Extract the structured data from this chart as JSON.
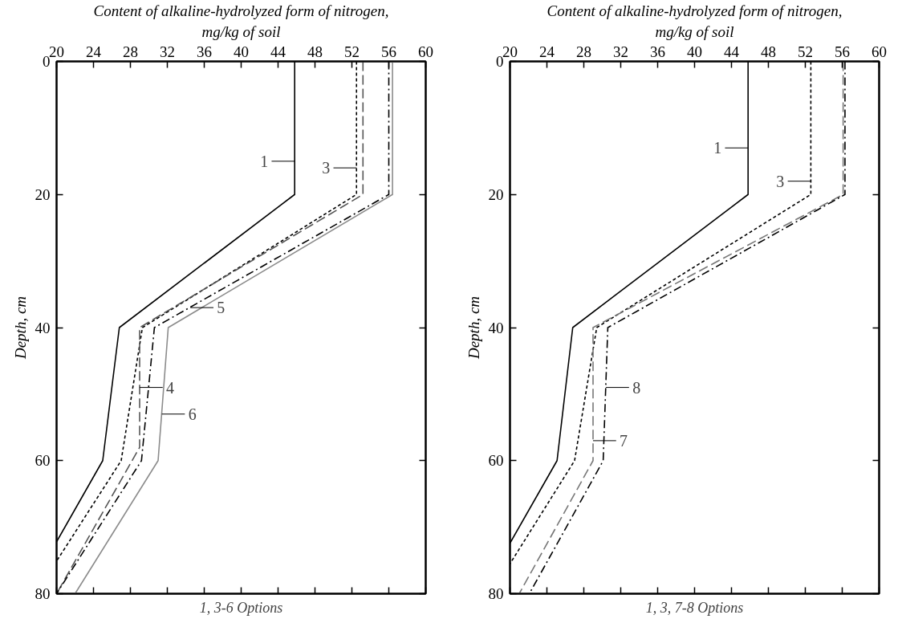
{
  "chart_data": [
    {
      "type": "line",
      "xlabel": "Content of alkaline-hydrolyzed form of nitrogen,\nmg/kg of soil",
      "ylabel": "Depth, cm",
      "subtitle": "1, 3-6 Options",
      "xlim": [
        20,
        60
      ],
      "xticks": [
        20,
        24,
        28,
        32,
        36,
        40,
        44,
        48,
        52,
        56,
        60
      ],
      "ylim": [
        80,
        0
      ],
      "yticks": [
        0,
        20,
        40,
        60,
        80
      ],
      "grid": false,
      "series": [
        {
          "color": "#000000",
          "line_style": "solid",
          "x": [
            45.8,
            45.8,
            26.8,
            25.0,
            20.0
          ],
          "values": [
            0,
            20,
            40,
            60,
            72.2
          ]
        },
        {
          "color": "#000000",
          "line_style": "dotted",
          "x": [
            52.5,
            52.5,
            29.3,
            27.0,
            20.0
          ],
          "values": [
            0,
            20,
            40,
            60,
            75.1
          ]
        },
        {
          "color": "#555555",
          "line_style": "dashed",
          "x": [
            53.2,
            53.2,
            29.0,
            29.0,
            20.0
          ],
          "values": [
            0,
            20,
            40,
            58,
            80
          ]
        },
        {
          "color": "#000000",
          "line_style": "dashdot",
          "x": [
            56.0,
            56.0,
            30.6,
            29.2,
            20.0
          ],
          "values": [
            0,
            20,
            40,
            60,
            80
          ]
        },
        {
          "color": "#8c8c8c",
          "line_style": "solid",
          "x": [
            56.4,
            56.4,
            32.1,
            31.0,
            22.0
          ],
          "values": [
            0,
            20,
            40,
            60,
            80
          ]
        }
      ],
      "annotations": [
        {
          "text": "1",
          "x": 45.8,
          "y": 15
        },
        {
          "text": "3",
          "x": 52.5,
          "y": 16
        },
        {
          "text": "4",
          "x": 29.0,
          "y": 49
        },
        {
          "text": "5",
          "x": 34.5,
          "y": 37
        },
        {
          "text": "6",
          "x": 31.4,
          "y": 53
        }
      ]
    },
    {
      "type": "line",
      "xlabel": "Content of alkaline-hydrolyzed form of nitrogen,\nmg/kg of soil",
      "ylabel": "Depth, cm",
      "subtitle": "1, 3, 7-8 Options",
      "xlim": [
        20,
        60
      ],
      "xticks": [
        20,
        24,
        28,
        32,
        36,
        40,
        44,
        48,
        52,
        56,
        60
      ],
      "ylim": [
        80,
        0
      ],
      "yticks": [
        0,
        20,
        40,
        60,
        80
      ],
      "grid": false,
      "series": [
        {
          "color": "#000000",
          "line_style": "solid",
          "x": [
            45.8,
            45.8,
            26.8,
            25.1,
            20.0
          ],
          "values": [
            0,
            20,
            40,
            60,
            72.4
          ]
        },
        {
          "color": "#000000",
          "line_style": "dotted",
          "x": [
            52.6,
            52.6,
            29.4,
            27.0,
            20.0
          ],
          "values": [
            0,
            20,
            40,
            60,
            75.5
          ]
        },
        {
          "color": "#777777",
          "line_style": "dashed",
          "x": [
            56.1,
            56.1,
            29.0,
            29.0,
            21.0
          ],
          "values": [
            0,
            20,
            40,
            60,
            80
          ]
        },
        {
          "color": "#000000",
          "line_style": "dashdot",
          "x": [
            56.3,
            56.3,
            30.6,
            30.1,
            22.1
          ],
          "values": [
            0,
            20,
            40,
            60,
            80
          ]
        }
      ],
      "annotations": [
        {
          "text": "1",
          "x": 45.8,
          "y": 13
        },
        {
          "text": "3",
          "x": 52.6,
          "y": 18
        },
        {
          "text": "8",
          "x": 30.4,
          "y": 49
        },
        {
          "text": "7",
          "x": 29.0,
          "y": 57
        }
      ]
    }
  ]
}
